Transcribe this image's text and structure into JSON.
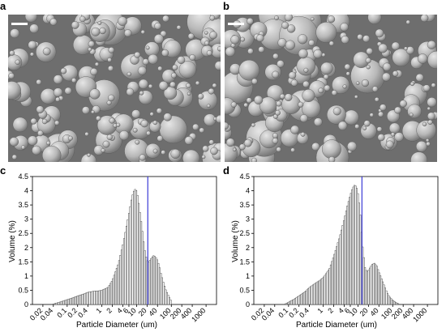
{
  "panels": {
    "a": {
      "label": "a"
    },
    "b": {
      "label": "b"
    }
  },
  "colors": {
    "sem_background": "#6e6e6e",
    "particle": "#bdbdbd",
    "bar_outline": "#3a3a3a",
    "marker_line": "#3b3bd6"
  },
  "chart_data": [
    {
      "panel_label": "c",
      "type": "bar",
      "xlabel": "Particle Diameter (um)",
      "ylabel": "Volume (%)",
      "xscale": "log",
      "xlim": [
        0.01,
        2000
      ],
      "ylim": [
        0,
        4.5
      ],
      "x_ticks": [
        "0.02",
        "0.04",
        "0.1",
        "0.2",
        "0.4",
        "1",
        "2",
        "4",
        "6",
        "10",
        "20",
        "40",
        "100",
        "200",
        "400",
        "1000"
      ],
      "y_ticks": [
        "0",
        "0.5",
        "1",
        "1.5",
        "2",
        "2.5",
        "3",
        "3.5",
        "4",
        "4.5"
      ],
      "marker_line_x": 21,
      "series": [
        {
          "x": [
            0.04,
            0.06,
            0.1,
            0.15,
            0.2,
            0.3,
            0.4,
            0.6,
            0.8,
            1,
            1.5,
            2,
            3,
            4,
            5,
            6,
            7,
            8,
            9,
            10,
            11,
            12,
            14,
            16,
            18,
            20,
            22,
            25,
            30,
            35,
            40,
            45,
            50,
            60,
            70,
            80,
            90,
            100
          ],
          "values": [
            0.02,
            0.08,
            0.17,
            0.24,
            0.3,
            0.37,
            0.43,
            0.47,
            0.48,
            0.5,
            0.6,
            0.85,
            1.45,
            2.1,
            2.7,
            3.2,
            3.65,
            3.95,
            4.05,
            4.0,
            3.75,
            3.4,
            2.8,
            2.2,
            1.75,
            1.55,
            1.5,
            1.58,
            1.72,
            1.68,
            1.55,
            1.35,
            1.1,
            0.75,
            0.5,
            0.35,
            0.22,
            0.12
          ]
        }
      ]
    },
    {
      "panel_label": "d",
      "type": "bar",
      "xlabel": "Particle Diameter (um)",
      "ylabel": "Volume (%)",
      "xscale": "log",
      "xlim": [
        0.01,
        2000
      ],
      "ylim": [
        0,
        4.5
      ],
      "x_ticks": [
        "0.02",
        "0.04",
        "0.1",
        "0.2",
        "0.4",
        "1",
        "2",
        "4",
        "6",
        "10",
        "20",
        "40",
        "100",
        "200",
        "400",
        "1000"
      ],
      "y_ticks": [
        "0",
        "0.5",
        "1",
        "1.5",
        "2",
        "2.5",
        "3",
        "3.5",
        "4",
        "4.5"
      ],
      "marker_line_x": 13,
      "series": [
        {
          "x": [
            0.08,
            0.1,
            0.15,
            0.2,
            0.3,
            0.4,
            0.6,
            0.8,
            1,
            1.5,
            2,
            3,
            4,
            5,
            6,
            7,
            8,
            9,
            10,
            11,
            12,
            13,
            14,
            16,
            18,
            20,
            25,
            30,
            35,
            40,
            50,
            60,
            70,
            80,
            100,
            120,
            150
          ],
          "values": [
            0.02,
            0.08,
            0.2,
            0.3,
            0.45,
            0.6,
            0.75,
            0.85,
            0.95,
            1.25,
            1.7,
            2.4,
            3.0,
            3.5,
            3.85,
            4.1,
            4.2,
            4.15,
            3.9,
            3.5,
            3.0,
            2.3,
            1.9,
            1.3,
            1.15,
            1.2,
            1.4,
            1.45,
            1.35,
            1.15,
            0.85,
            0.6,
            0.4,
            0.28,
            0.15,
            0.08,
            0.02
          ]
        }
      ]
    }
  ]
}
